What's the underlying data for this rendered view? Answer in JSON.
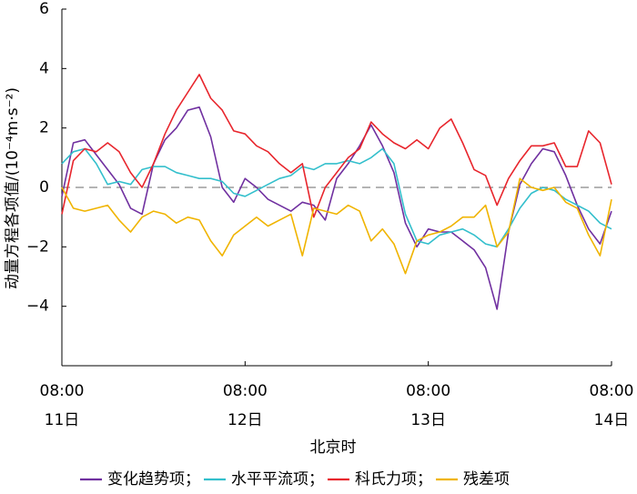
{
  "chart_data": {
    "type": "line",
    "ylabel": "动量方程各项值/(10⁻⁴m·s⁻²)",
    "xlabel": "北京时",
    "categories": [
      [
        "08:00",
        "11日"
      ],
      null,
      null,
      null,
      null,
      null,
      null,
      null,
      null,
      null,
      null,
      null,
      null,
      null,
      null,
      null,
      [
        "08:00",
        "12日"
      ],
      null,
      null,
      null,
      null,
      null,
      null,
      null,
      null,
      null,
      null,
      null,
      null,
      null,
      null,
      null,
      [
        "08:00",
        "13日"
      ],
      null,
      null,
      null,
      null,
      null,
      null,
      null,
      null,
      null,
      null,
      null,
      null,
      null,
      null,
      null,
      [
        "08:00",
        "14日"
      ]
    ],
    "series": [
      {
        "name": "变化趋势项",
        "color": "#7030a0",
        "values": [
          -0.3,
          1.5,
          1.6,
          1.1,
          0.6,
          0.1,
          -0.7,
          -0.9,
          0.8,
          1.6,
          2.0,
          2.6,
          2.7,
          1.7,
          0.0,
          -0.5,
          0.3,
          0.0,
          -0.4,
          -0.6,
          -0.8,
          -0.5,
          -0.6,
          -1.1,
          0.3,
          0.8,
          1.4,
          2.1,
          1.4,
          0.5,
          -1.2,
          -2.0,
          -1.4,
          -1.5,
          -1.5,
          -1.8,
          -2.1,
          -2.7,
          -4.1,
          -1.5,
          0.1,
          0.8,
          1.3,
          1.2,
          0.4,
          -0.6,
          -1.4,
          -1.9,
          -0.8
        ]
      },
      {
        "name": "水平平流项",
        "color": "#33bfcc",
        "values": [
          0.8,
          1.2,
          1.3,
          0.8,
          0.1,
          0.2,
          0.1,
          0.6,
          0.7,
          0.7,
          0.5,
          0.4,
          0.3,
          0.3,
          0.2,
          -0.2,
          -0.3,
          -0.1,
          0.1,
          0.3,
          0.4,
          0.7,
          0.6,
          0.8,
          0.8,
          0.9,
          0.8,
          1.0,
          1.3,
          0.8,
          -0.9,
          -1.8,
          -1.9,
          -1.6,
          -1.5,
          -1.4,
          -1.6,
          -1.9,
          -2.0,
          -1.4,
          -0.7,
          -0.2,
          0.0,
          -0.1,
          -0.4,
          -0.6,
          -0.8,
          -1.2,
          -1.4
        ]
      },
      {
        "name": "科氏力项",
        "color": "#e8262d",
        "values": [
          -0.9,
          0.9,
          1.3,
          1.2,
          1.5,
          1.2,
          0.5,
          0.0,
          0.8,
          1.8,
          2.6,
          3.2,
          3.8,
          3.0,
          2.6,
          1.9,
          1.8,
          1.4,
          1.2,
          0.8,
          0.5,
          0.8,
          -1.0,
          0.0,
          0.5,
          1.0,
          1.3,
          2.2,
          1.8,
          1.5,
          1.3,
          1.6,
          1.3,
          2.0,
          2.3,
          1.5,
          0.6,
          0.4,
          -0.6,
          0.3,
          0.9,
          1.4,
          1.4,
          1.5,
          0.7,
          0.7,
          1.9,
          1.5,
          0.1
        ]
      },
      {
        "name": "残差项",
        "color": "#f0b400",
        "values": [
          0.0,
          -0.7,
          -0.8,
          -0.7,
          -0.6,
          -1.1,
          -1.5,
          -1.0,
          -0.8,
          -0.9,
          -1.2,
          -1.0,
          -1.1,
          -1.8,
          -2.3,
          -1.6,
          -1.3,
          -1.0,
          -1.3,
          -1.1,
          -0.9,
          -2.3,
          -0.7,
          -0.8,
          -0.9,
          -0.6,
          -0.8,
          -1.8,
          -1.4,
          -1.9,
          -2.9,
          -1.8,
          -1.6,
          -1.5,
          -1.3,
          -1.0,
          -1.0,
          -0.6,
          -2.0,
          -1.5,
          0.3,
          0.0,
          -0.1,
          0.0,
          -0.5,
          -0.7,
          -1.6,
          -2.3,
          -0.4
        ]
      }
    ],
    "legend_separator": "；",
    "ylim": [
      -6,
      6
    ],
    "yticks": [
      {
        "value": -4,
        "label": "−4"
      },
      {
        "value": -2,
        "label": "−2"
      },
      0,
      2,
      4,
      6
    ],
    "hline": 0,
    "grid": false,
    "legend": "bottom"
  }
}
